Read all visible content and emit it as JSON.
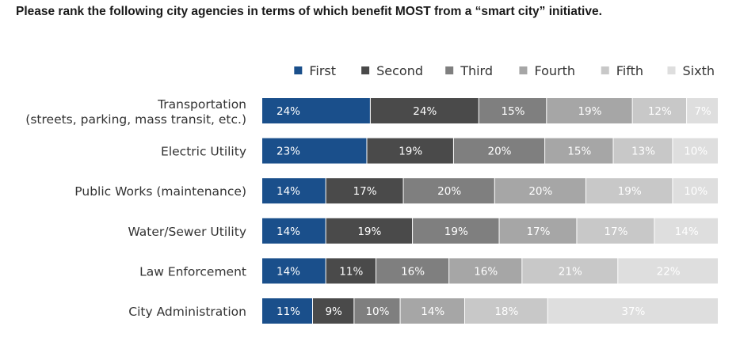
{
  "chart_data": {
    "type": "bar",
    "orientation": "horizontal",
    "stacked": true,
    "normalized": true,
    "title": "Please rank the following city agencies in terms of which benefit MOST from a “smart city” initiative.",
    "legend_position": "top-right",
    "grid": false,
    "categories": [
      [
        "Transportation",
        "(streets, parking, mass transit, etc.)"
      ],
      [
        "Electric Utility"
      ],
      [
        "Public Works (maintenance)"
      ],
      [
        "Water/Sewer Utility"
      ],
      [
        "Law Enforcement"
      ],
      [
        "City Administration"
      ]
    ],
    "value_suffix": "%",
    "series": [
      {
        "name": "First",
        "color": "#1a4f8b",
        "label_color": "#ffffff",
        "values": [
          24,
          23,
          14,
          14,
          14,
          11
        ]
      },
      {
        "name": "Second",
        "color": "#4a4a4a",
        "label_color": "#ffffff",
        "values": [
          24,
          19,
          17,
          19,
          11,
          9
        ]
      },
      {
        "name": "Third",
        "color": "#7f7f7f",
        "label_color": "#ffffff",
        "values": [
          15,
          20,
          20,
          19,
          16,
          10
        ]
      },
      {
        "name": "Fourth",
        "color": "#a6a6a6",
        "label_color": "#ffffff",
        "values": [
          19,
          15,
          20,
          17,
          16,
          14
        ]
      },
      {
        "name": "Fifth",
        "color": "#c8c8c8",
        "label_color": "#ffffff",
        "values": [
          12,
          13,
          19,
          17,
          21,
          18
        ]
      },
      {
        "name": "Sixth",
        "color": "#dedede",
        "label_color": "#ffffff",
        "values": [
          7,
          10,
          10,
          14,
          22,
          37
        ]
      }
    ]
  }
}
